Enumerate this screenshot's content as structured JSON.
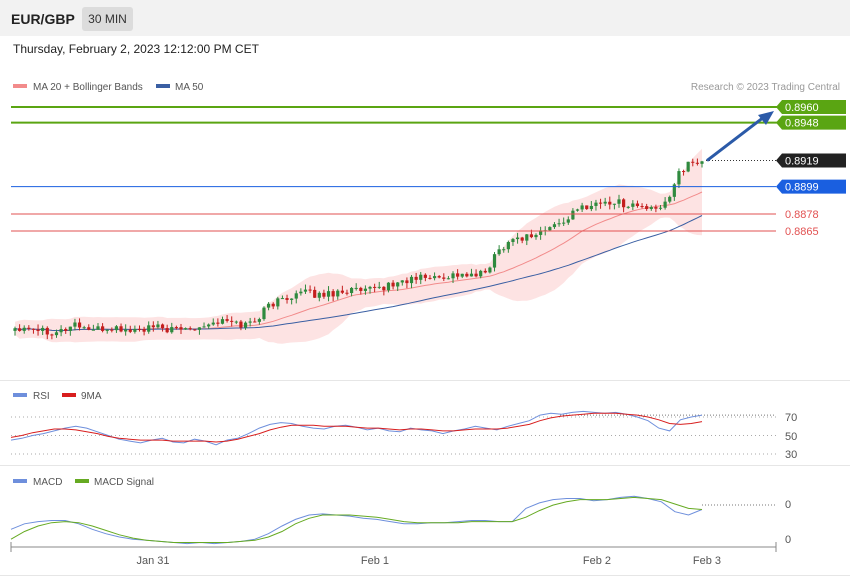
{
  "header": {
    "symbol": "EUR/GBP",
    "timeframe": "30 MIN"
  },
  "datetime": "Thursday, February 2, 2023 12:12:00 PM CET",
  "credit": "Research © 2023 Trading Central",
  "colors": {
    "up": "#2f8a3e",
    "down": "#c41e1e",
    "bb": "#fde3e3",
    "ma20": "#f28b8b",
    "ma50": "#3a5fa3",
    "green": "#5aa512",
    "blue": "#1a5fe0",
    "red": "#e25252",
    "dark": "#222222",
    "rsi": "#6e8fdc",
    "rsi_ma": "#d81e1e",
    "macd": "#6e8fdc",
    "macd_signal": "#66aa22"
  },
  "chart_data": [
    {
      "type": "candlestick",
      "legend": [
        "MA 20 + Bollinger Bands",
        "MA 50"
      ],
      "x_ticks": [
        "Jan 31",
        "Feb 1",
        "Feb 2",
        "Feb 3"
      ],
      "last_price": 0.8919,
      "levels": [
        {
          "value": 0.896,
          "label": "0.8960",
          "kind": "target"
        },
        {
          "value": 0.8948,
          "label": "0.8948",
          "kind": "target"
        },
        {
          "value": 0.8919,
          "label": "0.8919",
          "kind": "last"
        },
        {
          "value": 0.8899,
          "label": "0.8899",
          "kind": "pivot"
        },
        {
          "value": 0.8878,
          "label": "0.8878",
          "kind": "support"
        },
        {
          "value": 0.8865,
          "label": "0.8865",
          "kind": "support"
        }
      ],
      "close_path": [
        0.8791,
        0.8792,
        0.879,
        0.8788,
        0.8789,
        0.8794,
        0.879,
        0.8789,
        0.8791,
        0.8789,
        0.8789,
        0.879,
        0.8791,
        0.8789,
        0.879,
        0.8792,
        0.8794,
        0.8796,
        0.8795,
        0.8793,
        0.8797,
        0.8808,
        0.8812,
        0.8816,
        0.8818,
        0.8816,
        0.8817,
        0.8819,
        0.882,
        0.8818,
        0.8821,
        0.8823,
        0.8826,
        0.8828,
        0.883,
        0.8829,
        0.8831,
        0.8832,
        0.883,
        0.8833,
        0.8849,
        0.8858,
        0.886,
        0.8862,
        0.8866,
        0.887,
        0.8876,
        0.8883,
        0.8886,
        0.8887,
        0.8887,
        0.8885,
        0.8884,
        0.888,
        0.8886,
        0.891,
        0.8916,
        0.8919
      ]
    },
    {
      "type": "line",
      "legend": [
        "RSI",
        "9MA"
      ],
      "y_ticks": [
        70,
        50,
        30
      ],
      "rsi": [
        45,
        47,
        50,
        52,
        55,
        58,
        60,
        58,
        54,
        50,
        46,
        44,
        42,
        45,
        47,
        43,
        42,
        46,
        44,
        40,
        45,
        47,
        52,
        58,
        62,
        64,
        63,
        60,
        58,
        57,
        60,
        61,
        59,
        56,
        58,
        55,
        54,
        58,
        56,
        55,
        52,
        55,
        57,
        60,
        58,
        56,
        60,
        63,
        66,
        72,
        74,
        73,
        75,
        76,
        75,
        74,
        75,
        73,
        70,
        66,
        58,
        55,
        67,
        70,
        72
      ],
      "rsi_ma": [
        48,
        50,
        53,
        55,
        57,
        57,
        56,
        54,
        52,
        49,
        47,
        46,
        45,
        45,
        45,
        44,
        44,
        44,
        44,
        43,
        44,
        46,
        49,
        52,
        56,
        59,
        61,
        61,
        61,
        60,
        60,
        60,
        59,
        58,
        58,
        57,
        56,
        57,
        57,
        56,
        55,
        55,
        56,
        57,
        57,
        57,
        58,
        60,
        62,
        66,
        69,
        71,
        72,
        73,
        74,
        74,
        74,
        73,
        72,
        70,
        67,
        63,
        62,
        63,
        65
      ],
      "ylim": [
        25,
        80
      ]
    },
    {
      "type": "line",
      "legend": [
        "MACD",
        "MACD Signal"
      ],
      "y_ticks": [
        0,
        0
      ],
      "macd": [
        -0.0003,
        0.0002,
        0.0004,
        0.0005,
        0.0005,
        0.0002,
        -0.0003,
        -0.0007,
        -0.001,
        -0.0012,
        -0.0013,
        -0.0014,
        -0.0015,
        -0.0016,
        -0.0015,
        -0.0016,
        -0.0015,
        -0.0014,
        -0.0012,
        -0.0007,
        0.0,
        0.0006,
        0.001,
        0.0011,
        0.001,
        0.0009,
        0.0007,
        0.0006,
        0.0004,
        0.0002,
        0.0002,
        0.0003,
        0.0003,
        0.0004,
        0.0005,
        0.0005,
        0.0004,
        0.0004,
        0.0016,
        0.0021,
        0.0024,
        0.0025,
        0.0025,
        0.0023,
        0.0024,
        0.0026,
        0.0027,
        0.0025,
        0.0022,
        0.0013,
        0.001,
        0.0015
      ],
      "macd_signal": [
        -0.0012,
        -0.0005,
        0.0,
        0.0003,
        0.0004,
        0.0003,
        0.0,
        -0.0004,
        -0.0008,
        -0.0011,
        -0.0013,
        -0.0014,
        -0.0015,
        -0.0015,
        -0.0015,
        -0.0015,
        -0.0015,
        -0.0014,
        -0.0013,
        -0.001,
        -0.0005,
        0.0002,
        0.0007,
        0.001,
        0.001,
        0.001,
        0.0009,
        0.0008,
        0.0006,
        0.0004,
        0.0003,
        0.0003,
        0.0003,
        0.0003,
        0.0004,
        0.0004,
        0.0004,
        0.0004,
        0.0008,
        0.0014,
        0.0019,
        0.0022,
        0.0024,
        0.0024,
        0.0024,
        0.0025,
        0.0026,
        0.0025,
        0.0024,
        0.002,
        0.0016,
        0.0015
      ]
    }
  ]
}
